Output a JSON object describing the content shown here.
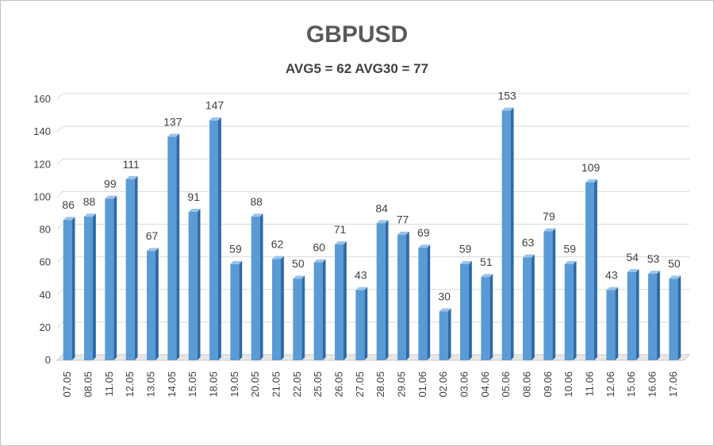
{
  "chart_data": {
    "type": "bar",
    "title": "GBPUSD",
    "subtitle": "AVG5 = 62 AVG30 = 77",
    "categories": [
      "07.05",
      "08.05",
      "11.05",
      "12.05",
      "13.05",
      "14.05",
      "15.05",
      "18.05",
      "19.05",
      "20.05",
      "21.05",
      "22.05",
      "25.05",
      "26.05",
      "27.05",
      "28.05",
      "29.05",
      "01.06",
      "02.06",
      "03.06",
      "04.06",
      "05.06",
      "08.06",
      "09.06",
      "10.06",
      "11.06",
      "12.06",
      "15.06",
      "16.06",
      "17.06"
    ],
    "values": [
      86,
      88,
      99,
      111,
      67,
      137,
      91,
      147,
      59,
      88,
      62,
      50,
      60,
      71,
      43,
      84,
      77,
      69,
      30,
      59,
      51,
      153,
      63,
      79,
      59,
      109,
      43,
      54,
      53,
      50
    ],
    "ylim": [
      0,
      160
    ],
    "yticks": [
      0,
      20,
      40,
      60,
      80,
      100,
      120,
      140,
      160
    ],
    "grid": true,
    "legend": "none",
    "bar_color": "#5b9bd5",
    "bar_side_color": "#2e6aa8",
    "bar_top_color": "#9cc3e8"
  }
}
